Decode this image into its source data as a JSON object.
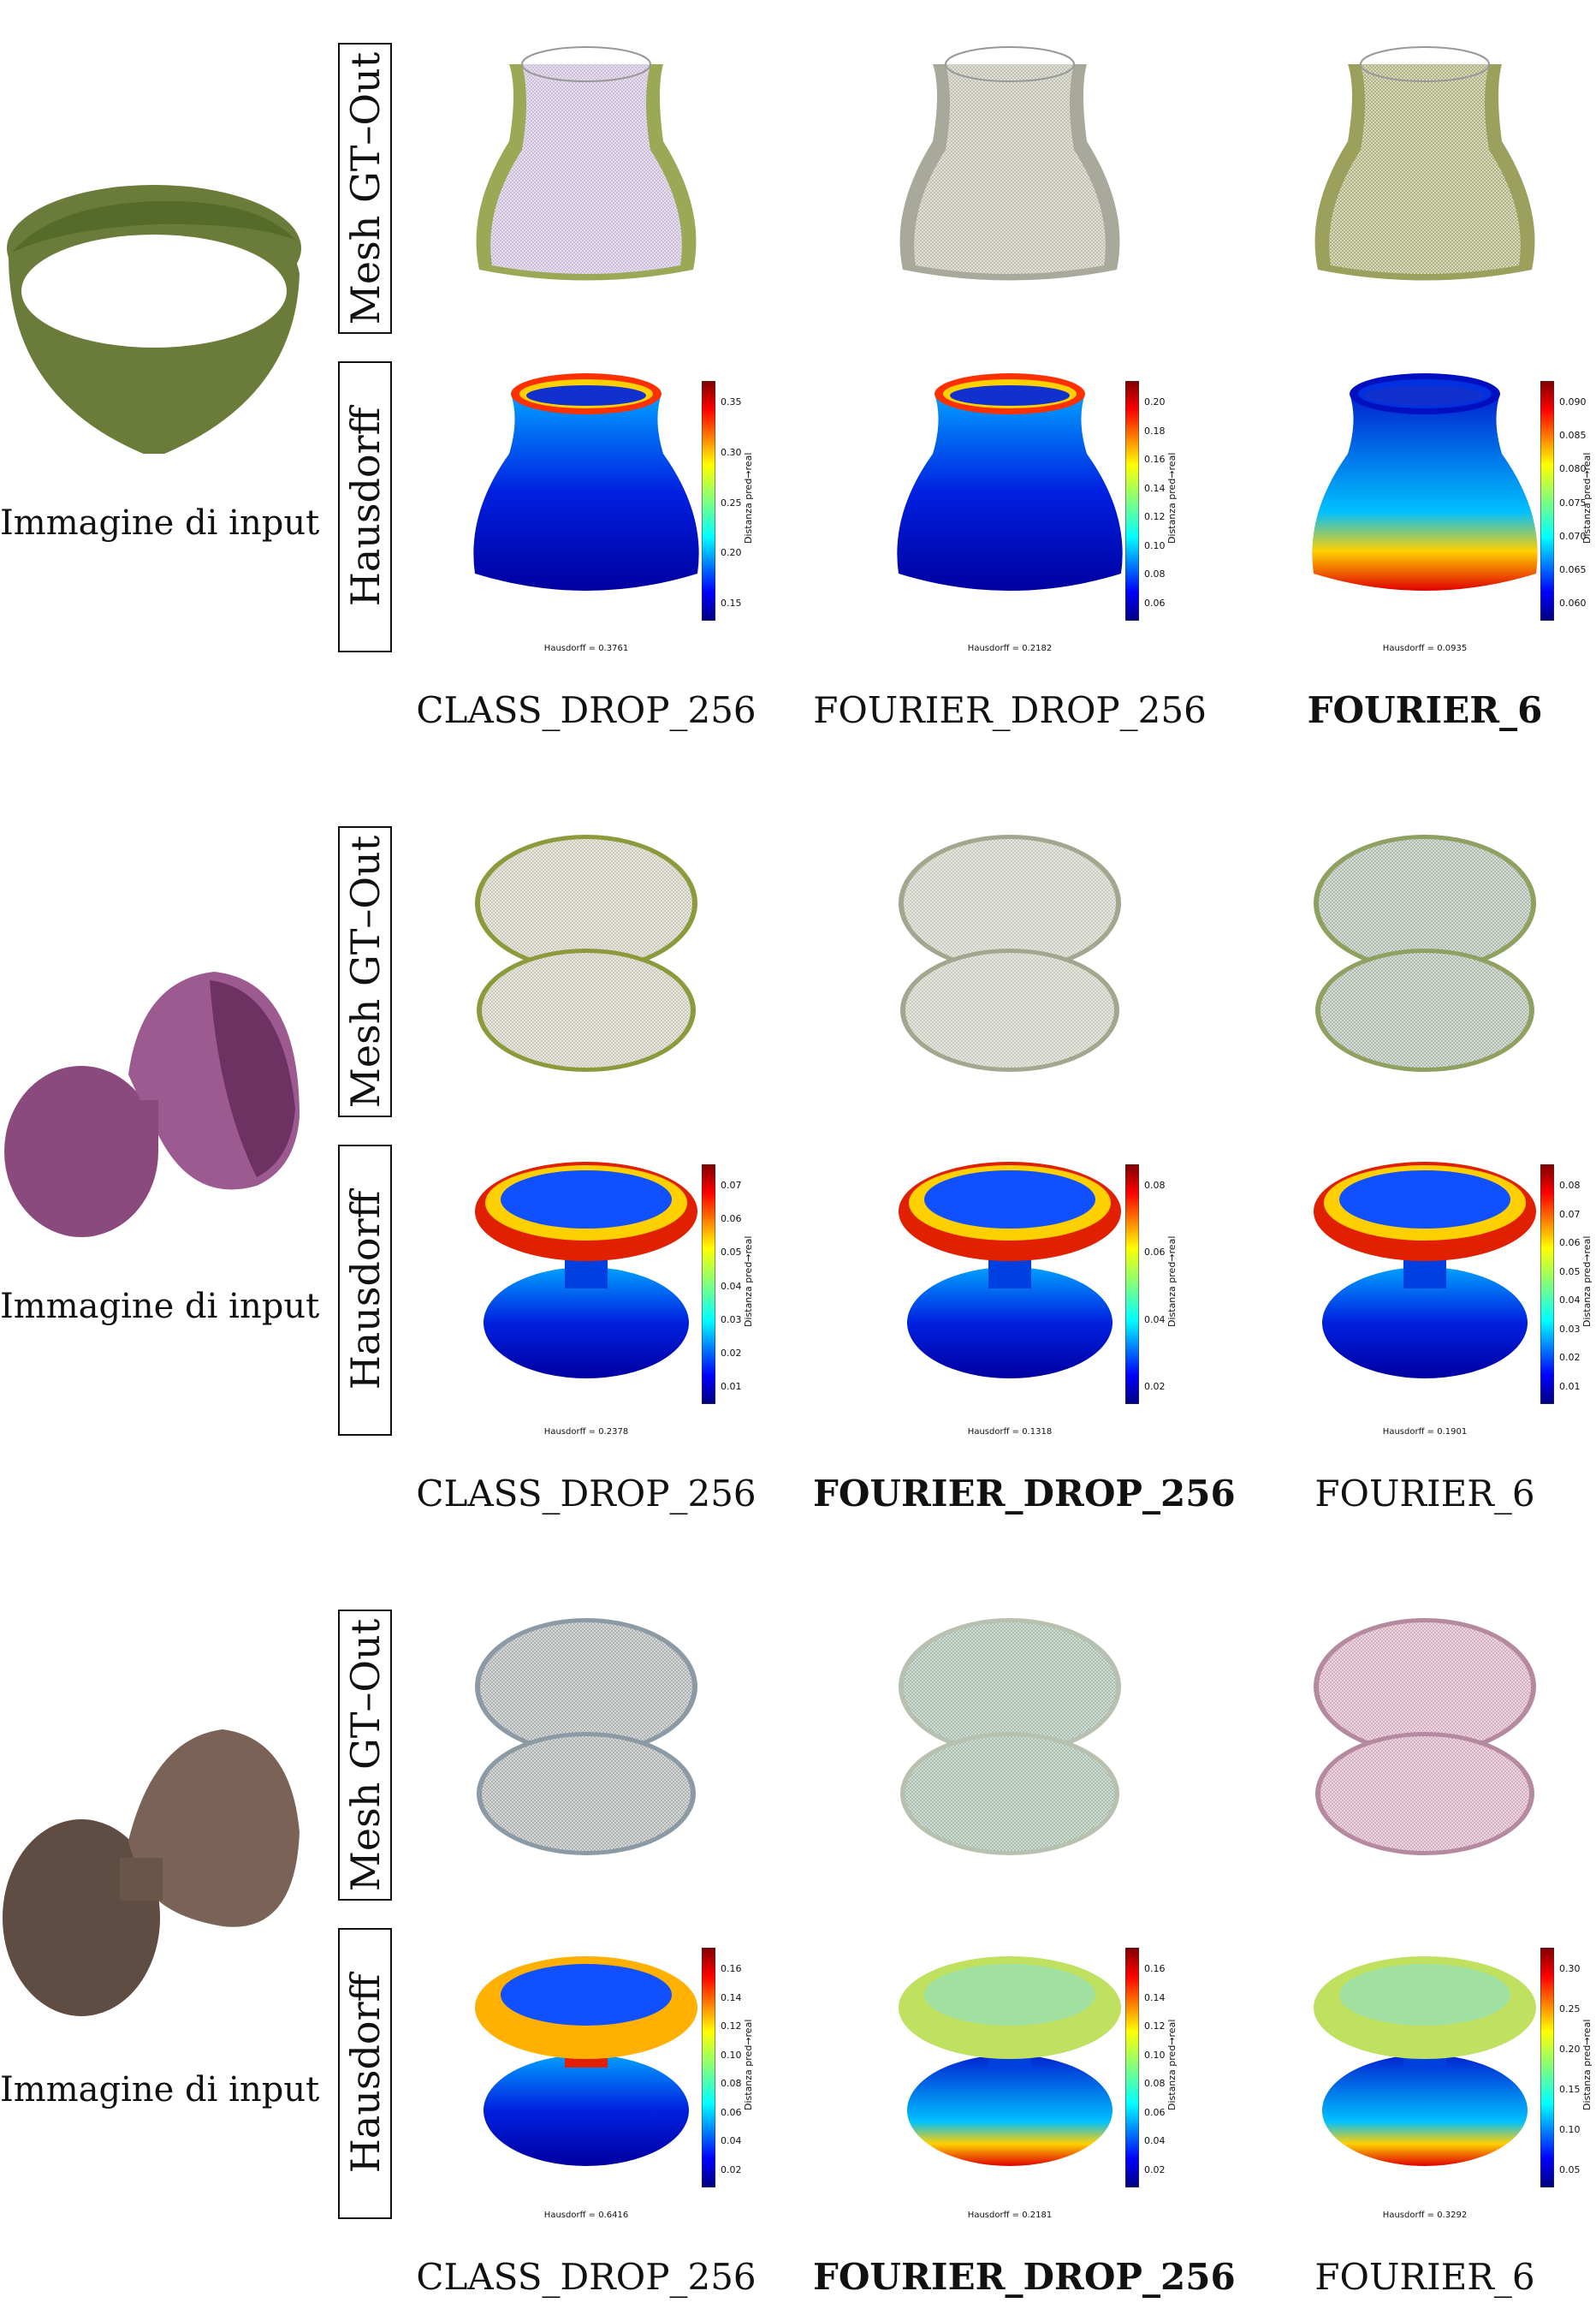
{
  "groups": [
    {
      "input_label": "Immagine di input",
      "input_color": "#6b7c3a",
      "row_labels": {
        "mesh": "Mesh GT–Out",
        "hausdorff": "Hausdorff"
      },
      "methods": [
        {
          "name": "CLASS_DROP_256",
          "best": false,
          "hausdorff_text": "Hausdorff = 0.3761",
          "colorbar_ticks": [
            "0.35",
            "0.30",
            "0.25",
            "0.20",
            "0.15"
          ],
          "colorbar_label": "Distanza pred→real"
        },
        {
          "name": "FOURIER_DROP_256",
          "best": false,
          "hausdorff_text": "Hausdorff = 0.2182",
          "colorbar_ticks": [
            "0.20",
            "0.18",
            "0.16",
            "0.14",
            "0.12",
            "0.10",
            "0.08",
            "0.06"
          ],
          "colorbar_label": "Distanza pred→real"
        },
        {
          "name": "FOURIER_6",
          "best": true,
          "hausdorff_text": "Hausdorff = 0.0935",
          "colorbar_ticks": [
            "0.090",
            "0.085",
            "0.080",
            "0.075",
            "0.070",
            "0.065",
            "0.060"
          ],
          "colorbar_label": "Distanza pred→real"
        }
      ]
    },
    {
      "input_label": "Immagine di input",
      "input_color": "#8a4a7e",
      "row_labels": {
        "mesh": "Mesh GT–Out",
        "hausdorff": "Hausdorff"
      },
      "methods": [
        {
          "name": "CLASS_DROP_256",
          "best": false,
          "hausdorff_text": "Hausdorff = 0.2378",
          "colorbar_ticks": [
            "0.07",
            "0.06",
            "0.05",
            "0.04",
            "0.03",
            "0.02",
            "0.01"
          ],
          "colorbar_label": "Distanza pred→real"
        },
        {
          "name": "FOURIER_DROP_256",
          "best": true,
          "hausdorff_text": "Hausdorff = 0.1318",
          "colorbar_ticks": [
            "0.08",
            "0.06",
            "0.04",
            "0.02"
          ],
          "colorbar_label": "Distanza pred→real"
        },
        {
          "name": "FOURIER_6",
          "best": false,
          "hausdorff_text": "Hausdorff = 0.1901",
          "colorbar_ticks": [
            "0.08",
            "0.07",
            "0.06",
            "0.05",
            "0.04",
            "0.03",
            "0.02",
            "0.01"
          ],
          "colorbar_label": "Distanza pred→real"
        }
      ]
    },
    {
      "input_label": "Immagine di input",
      "input_color": "#7a6356",
      "row_labels": {
        "mesh": "Mesh GT–Out",
        "hausdorff": "Hausdorff"
      },
      "methods": [
        {
          "name": "CLASS_DROP_256",
          "best": false,
          "hausdorff_text": "Hausdorff = 0.6416",
          "colorbar_ticks": [
            "0.16",
            "0.14",
            "0.12",
            "0.10",
            "0.08",
            "0.06",
            "0.04",
            "0.02"
          ],
          "colorbar_label": "Distanza pred→real"
        },
        {
          "name": "FOURIER_DROP_256",
          "best": true,
          "hausdorff_text": "Hausdorff = 0.2181",
          "colorbar_ticks": [
            "0.16",
            "0.14",
            "0.12",
            "0.10",
            "0.08",
            "0.06",
            "0.04",
            "0.02"
          ],
          "colorbar_label": "Distanza pred→real"
        },
        {
          "name": "FOURIER_6",
          "best": false,
          "hausdorff_text": "Hausdorff = 0.3292",
          "colorbar_ticks": [
            "0.30",
            "0.25",
            "0.20",
            "0.15",
            "0.10",
            "0.05"
          ],
          "colorbar_label": "Distanza pred→real"
        }
      ]
    }
  ],
  "mesh_colors": [
    [
      [
        "#c9b9d6",
        "#8a9a3a"
      ],
      [
        "#bcbcae",
        "#9a9a8a"
      ],
      [
        "#a9ad78",
        "#8a9040"
      ]
    ],
    [
      [
        "#c8c8b8",
        "#8d9a3c"
      ],
      [
        "#c8c8bc",
        "#a2a890"
      ],
      [
        "#a9b4a8",
        "#90a060"
      ]
    ],
    [
      [
        "#a8acaa",
        "#8c9aa6"
      ],
      [
        "#9fb8a8",
        "#b8c0b0"
      ],
      [
        "#d3a9bc",
        "#b58aa0"
      ]
    ]
  ],
  "input_shapes": [
    "band",
    "vase",
    "hourglass"
  ],
  "heatmap_shapes": [
    "vase",
    "yoyo",
    "spindle"
  ]
}
